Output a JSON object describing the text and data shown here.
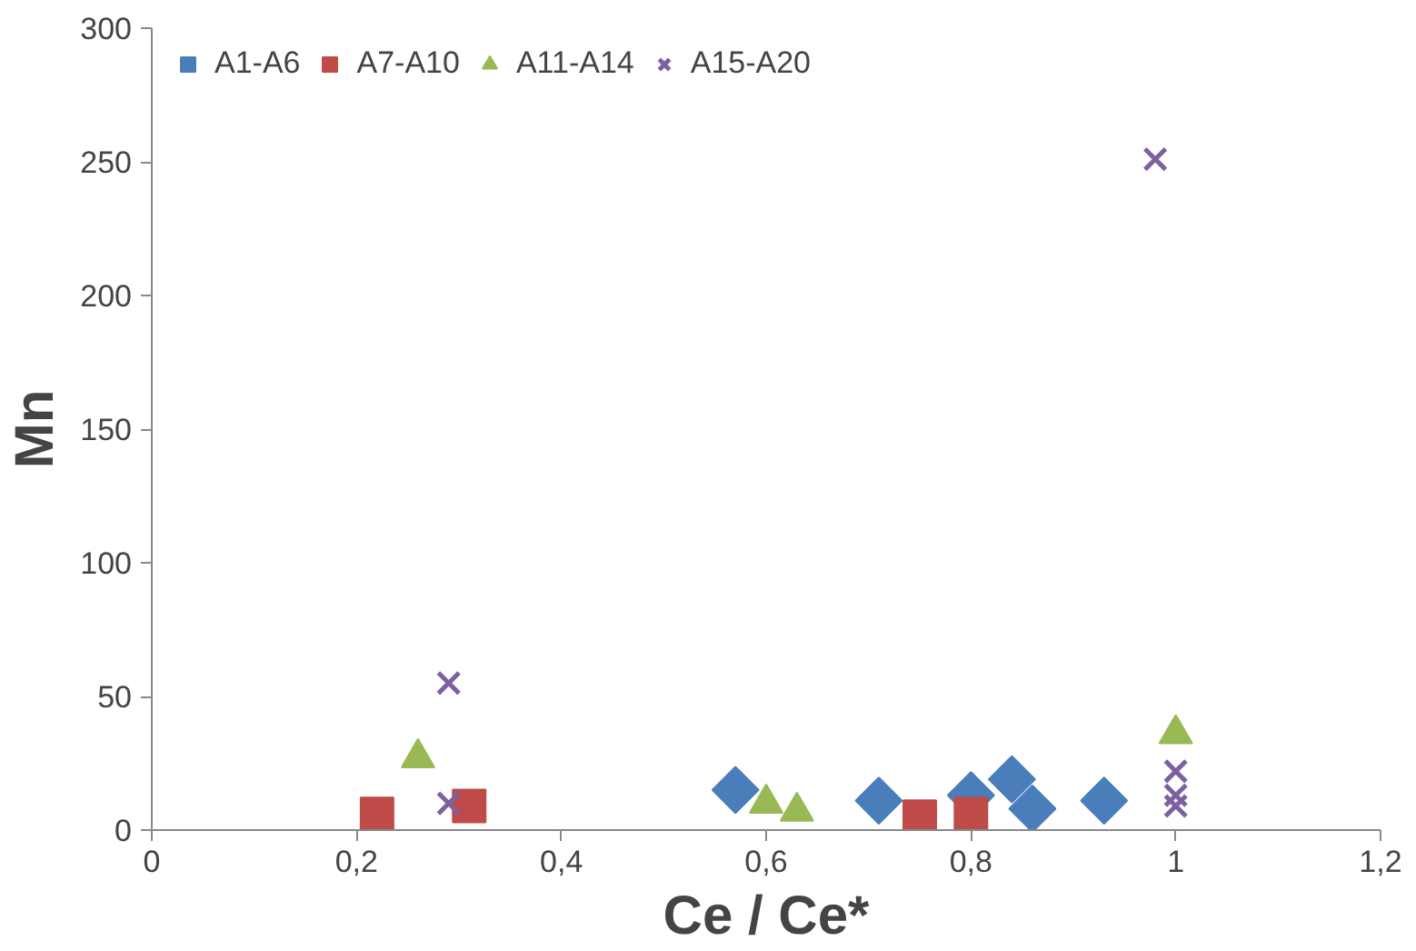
{
  "chart_data": {
    "type": "scatter",
    "xlabel": "Ce / Ce*",
    "ylabel": "Mn",
    "xlim": [
      0,
      1.2
    ],
    "xticks": [
      {
        "value": 0,
        "label": "0"
      },
      {
        "value": 0.2,
        "label": "0,2"
      },
      {
        "value": 0.4,
        "label": "0,4"
      },
      {
        "value": 0.6,
        "label": "0,6"
      },
      {
        "value": 0.8,
        "label": "0,8"
      },
      {
        "value": 1,
        "label": "1"
      },
      {
        "value": 1.2,
        "label": "1,2"
      }
    ],
    "ylim": [
      0,
      300
    ],
    "yticks": [
      0,
      50,
      100,
      150,
      200,
      250,
      300
    ],
    "grid": false,
    "legend": "top left",
    "series": [
      {
        "name": "A1-A6",
        "color": "#4a7ebb",
        "marker": "diamond",
        "x": [
          0.57,
          0.71,
          0.8,
          0.84,
          0.86,
          0.93
        ],
        "values": [
          15,
          11,
          13,
          19,
          8,
          11
        ]
      },
      {
        "name": "A7-A10",
        "color": "#be4b48",
        "marker": "square",
        "x": [
          0.22,
          0.31,
          0.75,
          0.8
        ],
        "values": [
          6,
          9,
          5,
          6
        ]
      },
      {
        "name": "A11-A14",
        "color": "#98b954",
        "marker": "triangle",
        "x": [
          0.26,
          0.6,
          0.63,
          1.0
        ],
        "values": [
          27,
          10,
          7,
          36
        ]
      },
      {
        "name": "A15-A20",
        "color": "#7d60a0",
        "marker": "cross",
        "x": [
          0.29,
          0.29,
          0.98,
          1.0,
          1.0,
          1.0
        ],
        "values": [
          55,
          10,
          251,
          22,
          13,
          9
        ]
      }
    ]
  }
}
